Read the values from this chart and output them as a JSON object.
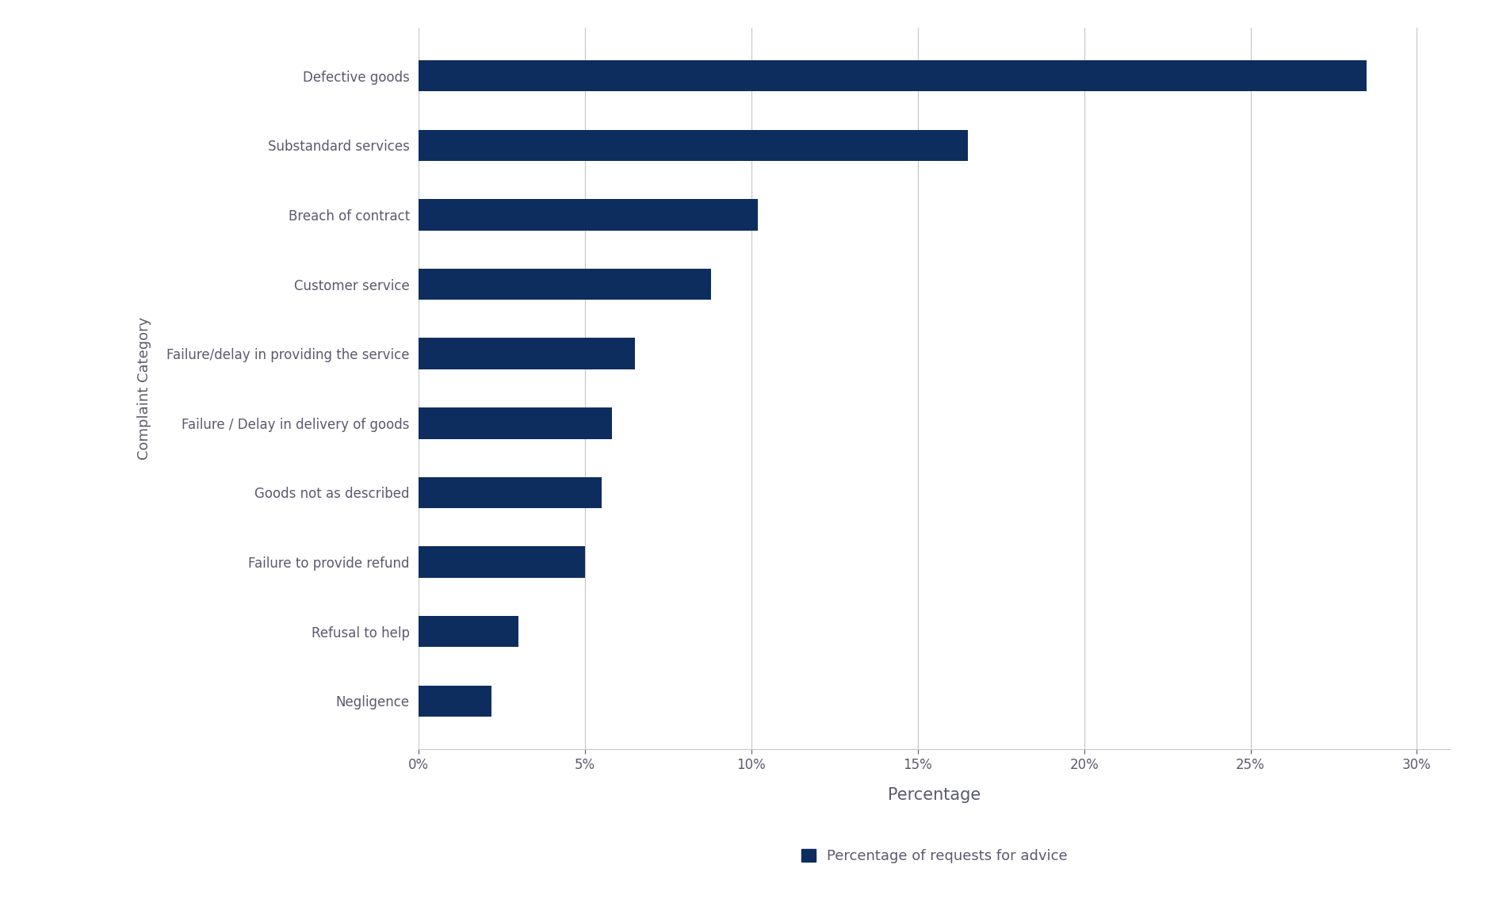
{
  "categories": [
    "Negligence",
    "Refusal to help",
    "Failure to provide refund",
    "Goods not as described",
    "Failure / Delay in delivery of goods",
    "Failure/delay in providing the service",
    "Customer service",
    "Breach of contract",
    "Substandard services",
    "Defective goods"
  ],
  "values": [
    2.2,
    3.0,
    5.0,
    5.5,
    5.8,
    6.5,
    8.8,
    10.2,
    16.5,
    28.5
  ],
  "bar_color": "#0d2d5e",
  "xlabel": "Percentage",
  "ylabel": "Complaint Category",
  "xlim": [
    0,
    31
  ],
  "xticks": [
    0,
    5,
    10,
    15,
    20,
    25,
    30
  ],
  "xtick_labels": [
    "0%",
    "5%",
    "10%",
    "15%",
    "20%",
    "25%",
    "30%"
  ],
  "legend_label": "Percentage of requests for advice",
  "background_color": "#ffffff",
  "grid_color": "#c8c8c8",
  "xlabel_fontsize": 15,
  "ylabel_fontsize": 13,
  "tick_fontsize": 12,
  "bar_height": 0.45,
  "text_color": "#5a5a6e"
}
